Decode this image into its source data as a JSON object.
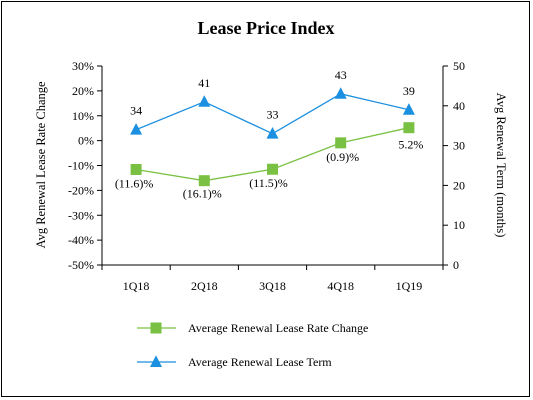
{
  "chart_data": {
    "type": "line",
    "title": "Lease Price Index",
    "categories": [
      "1Q18",
      "2Q18",
      "3Q18",
      "4Q18",
      "1Q19"
    ],
    "y_left": {
      "label": "Avg Renewal Lease Rate Change",
      "range": [
        -50,
        30
      ],
      "ticks": [
        "30%",
        "20%",
        "10%",
        "0%",
        "-10%",
        "-20%",
        "-30%",
        "-40%",
        "-50%"
      ],
      "tick_values": [
        30,
        20,
        10,
        0,
        -10,
        -20,
        -30,
        -40,
        -50
      ]
    },
    "y_right": {
      "label": "Avg Renewal Term (months)",
      "range": [
        0,
        50
      ],
      "ticks": [
        "50",
        "40",
        "30",
        "20",
        "10",
        "0"
      ],
      "tick_values": [
        50,
        40,
        30,
        20,
        10,
        0
      ]
    },
    "series": [
      {
        "name": "Average Renewal Lease Rate Change",
        "axis": "left",
        "marker": "square",
        "color": "#7ac143",
        "values": [
          -11.6,
          -16.1,
          -11.5,
          -0.9,
          5.2
        ],
        "labels": [
          "(11.6)%",
          "(16.1)%",
          "(11.5)%",
          "(0.9)%",
          "5.2%"
        ]
      },
      {
        "name": "Average Renewal Lease Term",
        "axis": "right",
        "marker": "triangle",
        "color": "#1b8fe0",
        "values": [
          34,
          41,
          33,
          43,
          39
        ],
        "labels": [
          "34",
          "41",
          "33",
          "43",
          "39"
        ]
      }
    ],
    "legend_position": "bottom",
    "grid": false
  }
}
